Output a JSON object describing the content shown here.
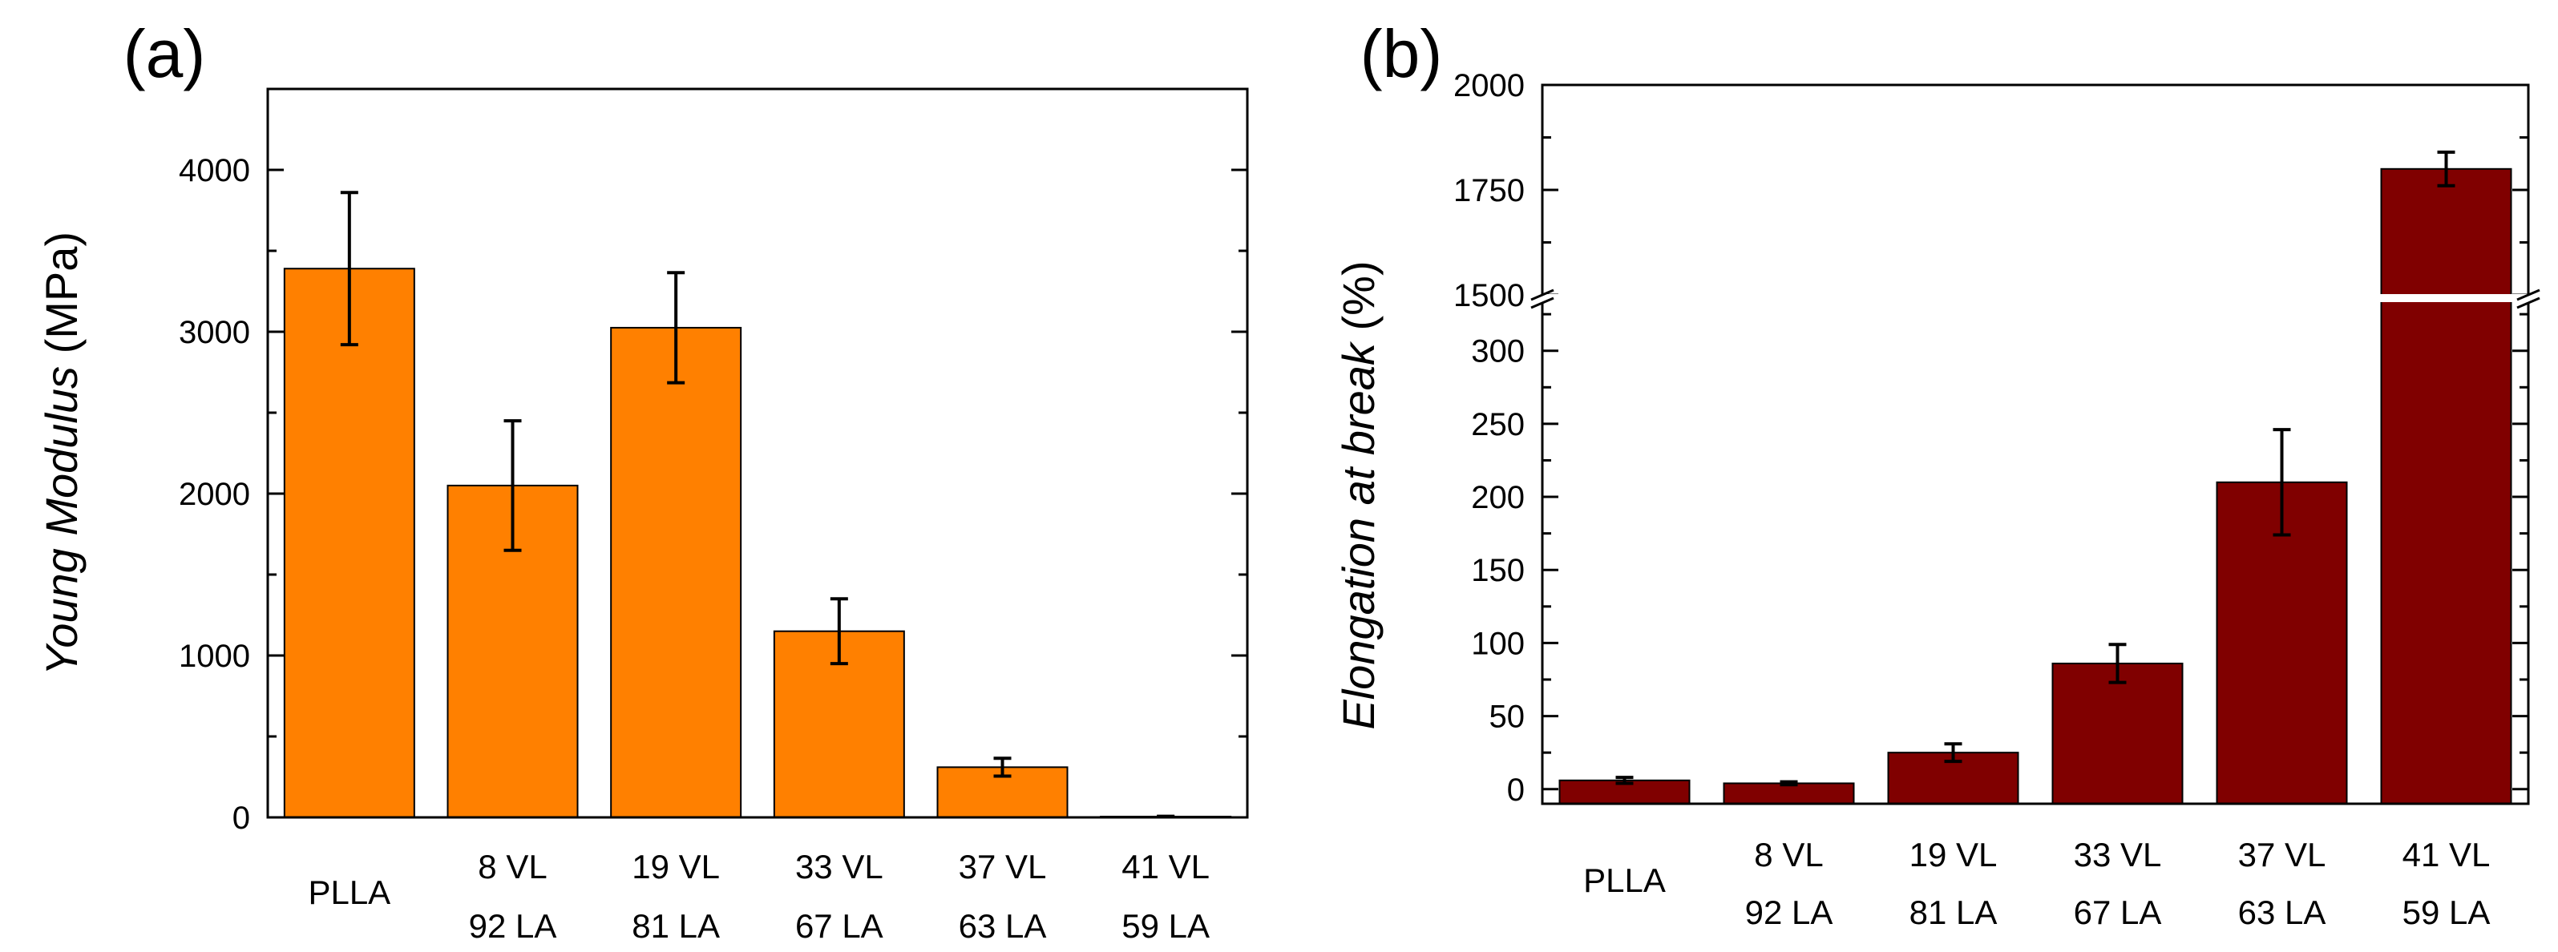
{
  "colors": {
    "panel_a_bar": "#ff8000",
    "panel_b_bar": "#800000",
    "axis": "#000000"
  },
  "chart_data": [
    {
      "type": "bar",
      "panel_label": "(a)",
      "ylabel_italic": "Young Modulus",
      "ylabel_unit": " (MPa)",
      "categories": [
        [
          "PLLA"
        ],
        [
          "8  VL",
          "92 LA"
        ],
        [
          "19  VL",
          "81 LA"
        ],
        [
          "33  VL",
          "67 LA"
        ],
        [
          "37  VL",
          "63 LA"
        ],
        [
          "41  VL",
          "59 LA"
        ]
      ],
      "values": [
        3390,
        2050,
        3025,
        1150,
        310,
        5
      ],
      "errors": [
        470,
        400,
        340,
        200,
        55,
        2
      ],
      "ylim": [
        0,
        4500
      ],
      "yticks": [
        0,
        1000,
        2000,
        3000,
        4000
      ]
    },
    {
      "type": "bar",
      "panel_label": "(b)",
      "ylabel_italic": "Elongation at break",
      "ylabel_unit": " (%)",
      "categories": [
        [
          "PLLA"
        ],
        [
          "8  VL",
          "92 LA"
        ],
        [
          "19  VL",
          "81 LA"
        ],
        [
          "33  VL",
          "67 LA"
        ],
        [
          "37  VL",
          "63 LA"
        ],
        [
          "41  VL",
          "59 LA"
        ]
      ],
      "values": [
        6,
        4,
        25,
        86,
        210,
        1800
      ],
      "errors": [
        2,
        1,
        6,
        13,
        36,
        40
      ],
      "axis_break": {
        "lower_range": [
          -10,
          330
        ],
        "upper_range": [
          1500,
          2000
        ]
      },
      "yticks_lower": [
        0,
        50,
        100,
        150,
        200,
        250,
        300
      ],
      "yticks_upper": [
        1500,
        1750,
        2000
      ]
    }
  ]
}
